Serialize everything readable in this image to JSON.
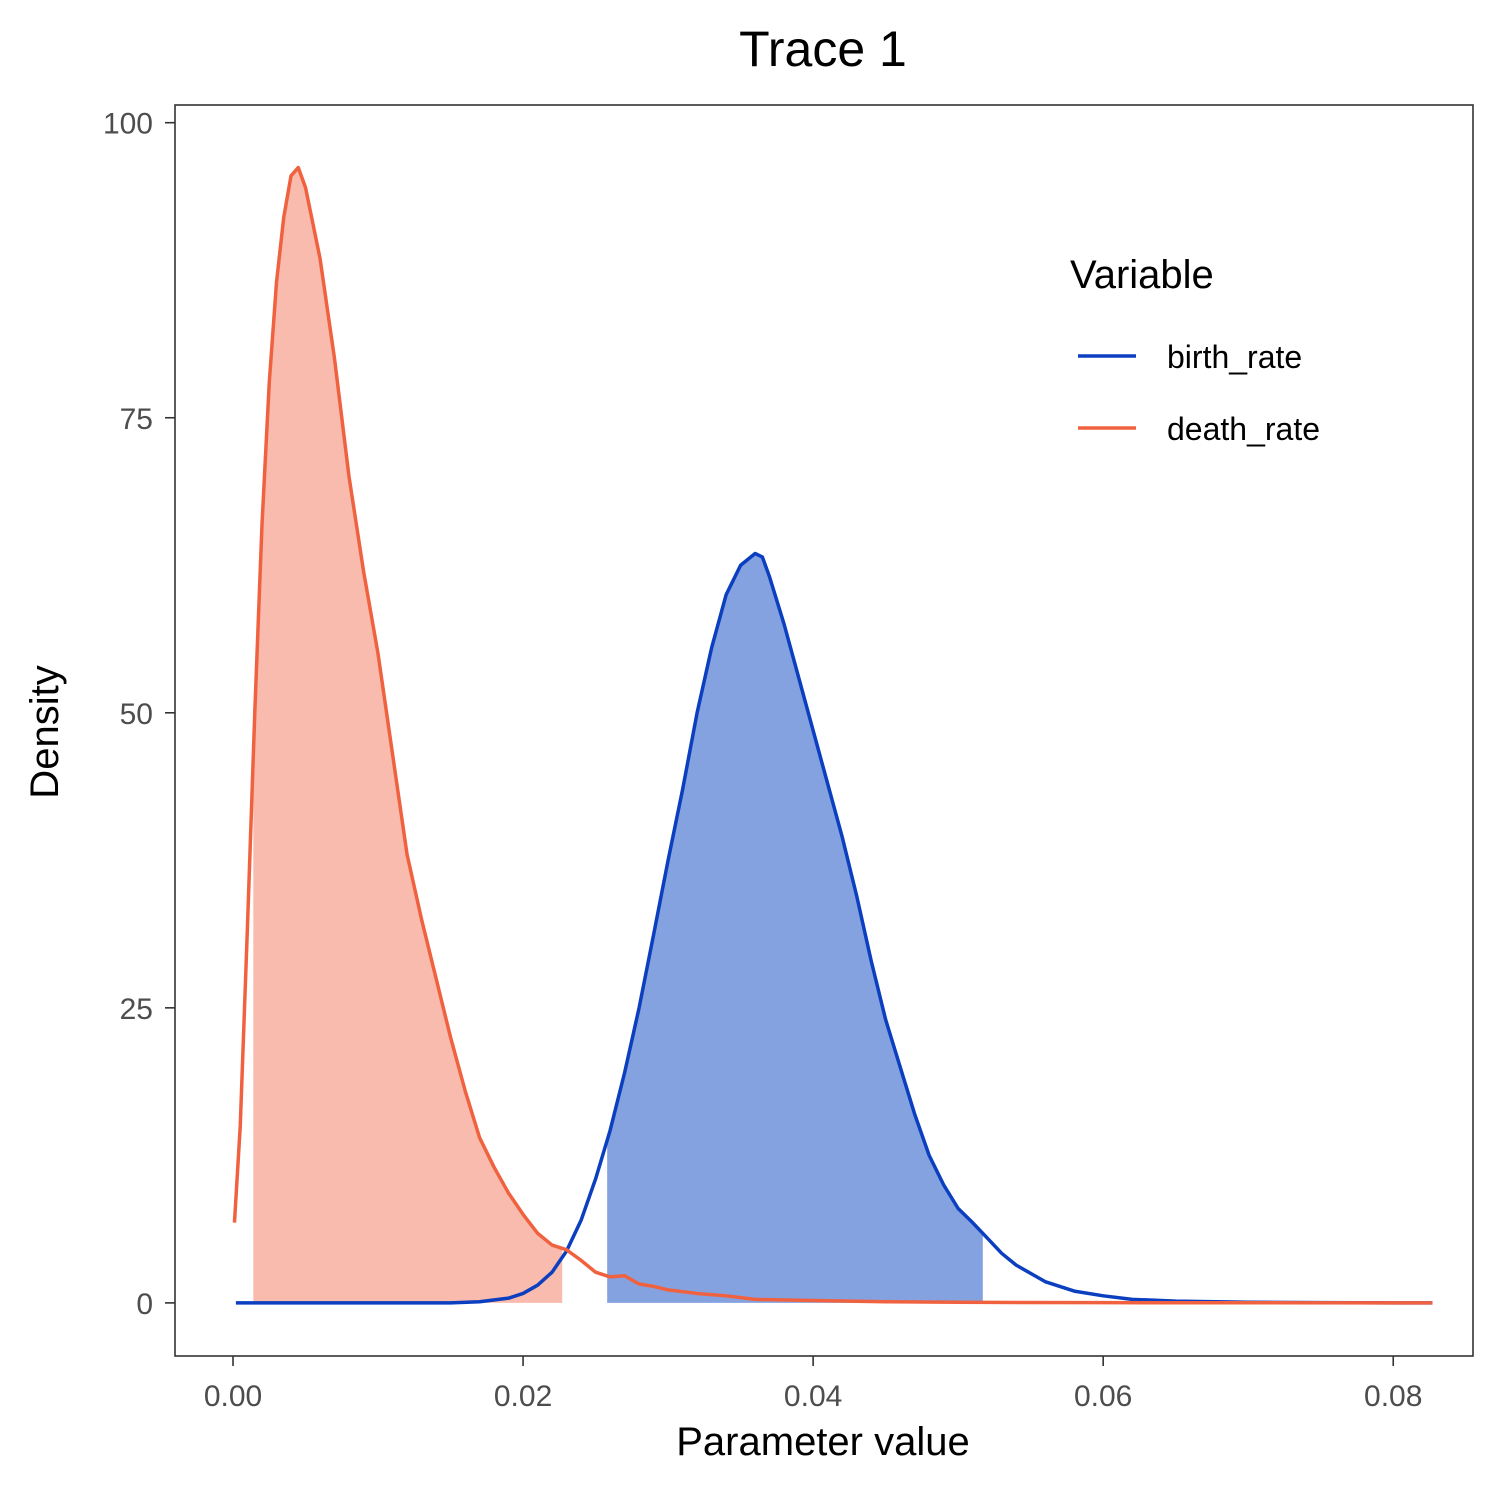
{
  "chart_data": {
    "type": "area",
    "title": "Trace 1",
    "xlabel": "Parameter value",
    "ylabel": "Density",
    "xlim": [
      -0.004,
      0.0855
    ],
    "ylim": [
      -4.5,
      101.5
    ],
    "x_ticks": [
      0.0,
      0.02,
      0.04,
      0.06,
      0.08
    ],
    "x_tick_labels": [
      "0.00",
      "0.02",
      "0.04",
      "0.06",
      "0.08"
    ],
    "y_ticks": [
      0,
      25,
      50,
      75,
      100
    ],
    "y_tick_labels": [
      "0",
      "25",
      "50",
      "75",
      "100"
    ],
    "grid": false,
    "legend": {
      "title": "Variable",
      "position": "top-right"
    },
    "series": [
      {
        "name": "birth_rate",
        "color": "#0b3fbf",
        "fill_color": "#5b83d6",
        "hpd_interval": [
          0.0258,
          0.0517
        ],
        "points": [
          [
            0.0002,
            0
          ],
          [
            0.005,
            0
          ],
          [
            0.01,
            0
          ],
          [
            0.015,
            0
          ],
          [
            0.017,
            0.1
          ],
          [
            0.019,
            0.4
          ],
          [
            0.02,
            0.8
          ],
          [
            0.021,
            1.5
          ],
          [
            0.022,
            2.6
          ],
          [
            0.023,
            4.4
          ],
          [
            0.024,
            7.0
          ],
          [
            0.025,
            10.5
          ],
          [
            0.026,
            14.6
          ],
          [
            0.027,
            19.5
          ],
          [
            0.028,
            25.0
          ],
          [
            0.029,
            31.2
          ],
          [
            0.03,
            37.5
          ],
          [
            0.031,
            43.5
          ],
          [
            0.032,
            50.0
          ],
          [
            0.033,
            55.5
          ],
          [
            0.034,
            60.0
          ],
          [
            0.035,
            62.5
          ],
          [
            0.036,
            63.5
          ],
          [
            0.0365,
            63.2
          ],
          [
            0.037,
            61.5
          ],
          [
            0.038,
            57.5
          ],
          [
            0.039,
            53.0
          ],
          [
            0.04,
            48.5
          ],
          [
            0.041,
            44.0
          ],
          [
            0.042,
            39.5
          ],
          [
            0.043,
            34.5
          ],
          [
            0.044,
            29.0
          ],
          [
            0.045,
            24.0
          ],
          [
            0.046,
            20.0
          ],
          [
            0.047,
            16.0
          ],
          [
            0.048,
            12.5
          ],
          [
            0.049,
            10.0
          ],
          [
            0.05,
            8.0
          ],
          [
            0.051,
            6.8
          ],
          [
            0.052,
            5.5
          ],
          [
            0.053,
            4.2
          ],
          [
            0.054,
            3.2
          ],
          [
            0.055,
            2.5
          ],
          [
            0.056,
            1.8
          ],
          [
            0.058,
            1.0
          ],
          [
            0.06,
            0.6
          ],
          [
            0.062,
            0.3
          ],
          [
            0.065,
            0.15
          ],
          [
            0.07,
            0.05
          ],
          [
            0.075,
            0.02
          ],
          [
            0.0827,
            0
          ]
        ]
      },
      {
        "name": "death_rate",
        "color": "#f0623f",
        "fill_color": "#f7a491",
        "hpd_interval": [
          0.0014,
          0.0227
        ],
        "points": [
          [
            0.0001,
            6.8
          ],
          [
            0.0005,
            15.0
          ],
          [
            0.001,
            32.0
          ],
          [
            0.0015,
            50.0
          ],
          [
            0.002,
            66.0
          ],
          [
            0.0025,
            78.0
          ],
          [
            0.003,
            86.5
          ],
          [
            0.0035,
            92.0
          ],
          [
            0.004,
            95.5
          ],
          [
            0.0045,
            96.2
          ],
          [
            0.005,
            94.5
          ],
          [
            0.006,
            88.5
          ],
          [
            0.007,
            80.0
          ],
          [
            0.008,
            70.0
          ],
          [
            0.009,
            62.0
          ],
          [
            0.01,
            55.0
          ],
          [
            0.011,
            46.5
          ],
          [
            0.012,
            38.0
          ],
          [
            0.013,
            32.5
          ],
          [
            0.014,
            27.5
          ],
          [
            0.015,
            22.5
          ],
          [
            0.016,
            18.0
          ],
          [
            0.017,
            14.0
          ],
          [
            0.018,
            11.5
          ],
          [
            0.019,
            9.3
          ],
          [
            0.02,
            7.5
          ],
          [
            0.021,
            5.9
          ],
          [
            0.022,
            4.9
          ],
          [
            0.023,
            4.5
          ],
          [
            0.024,
            3.6
          ],
          [
            0.025,
            2.6
          ],
          [
            0.026,
            2.2
          ],
          [
            0.027,
            2.3
          ],
          [
            0.028,
            1.6
          ],
          [
            0.029,
            1.4
          ],
          [
            0.03,
            1.1
          ],
          [
            0.032,
            0.8
          ],
          [
            0.034,
            0.6
          ],
          [
            0.036,
            0.3
          ],
          [
            0.04,
            0.2
          ],
          [
            0.045,
            0.1
          ],
          [
            0.05,
            0.05
          ],
          [
            0.06,
            0.02
          ],
          [
            0.0827,
            0
          ]
        ]
      }
    ]
  }
}
